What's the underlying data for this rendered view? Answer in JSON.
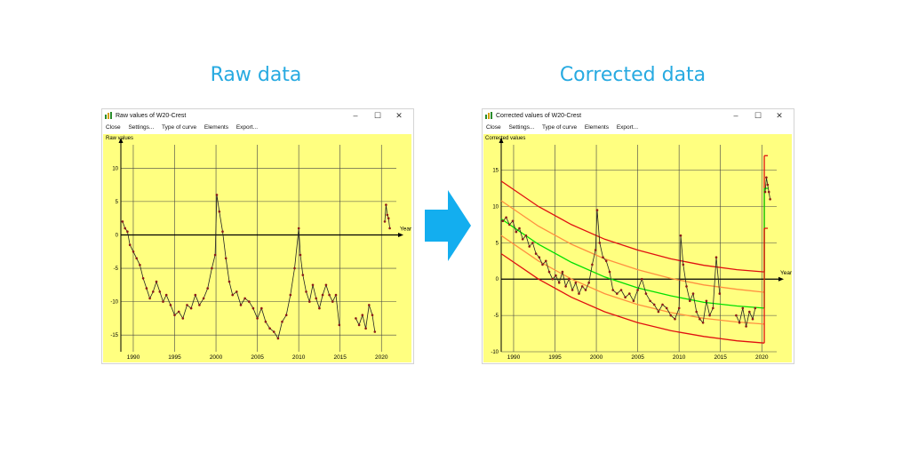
{
  "headings": {
    "raw": "Raw data",
    "corrected": "Corrected data"
  },
  "colors": {
    "heading": "#27aae1",
    "plot_bg": "#ffff80",
    "arrow": "#13aeef",
    "data": "#8b1a1a",
    "trend": "#00e000",
    "inner_band": "#ff9040",
    "outer_band": "#e01010"
  },
  "icons": [
    "app-icon",
    "minimize-icon",
    "maximize-icon",
    "close-icon",
    "right-arrow-icon"
  ],
  "windows": {
    "raw": {
      "title": "Raw values of W20-Crest",
      "menu": [
        "Close",
        "Settings...",
        "Type of curve",
        "Elements",
        "Export..."
      ],
      "ylabel": "Raw values",
      "controls": [
        "–",
        "☐",
        "✕"
      ]
    },
    "corrected": {
      "title": "Corrected values of W20-Crest",
      "menu": [
        "Close",
        "Settings...",
        "Type of curve",
        "Elements",
        "Export..."
      ],
      "ylabel": "Corrected values",
      "controls": [
        "–",
        "☐",
        "✕"
      ]
    }
  },
  "chart_data": [
    {
      "type": "line",
      "ylabel": "Raw values",
      "xlabel": "Years",
      "xlim": [
        1988.5,
        2021.8
      ],
      "ylim": [
        -17.5,
        13.5
      ],
      "xticks": [
        1990,
        1995,
        2000,
        2005,
        2010,
        2015,
        2020
      ],
      "yticks": [
        10,
        5,
        0,
        -5,
        -10,
        -15
      ],
      "grid": true,
      "segments": [
        {
          "x": [
            1988.7,
            1989.0,
            1989.3,
            1989.6,
            1990.0,
            1990.4,
            1990.8,
            1991.2,
            1991.6,
            1992.0,
            1992.4,
            1992.8,
            1993.2,
            1993.6,
            1994.0,
            1994.5,
            1995.0,
            1995.5,
            1996.0,
            1996.5,
            1997.0,
            1997.5,
            1998.0,
            1998.5,
            1999.0,
            1999.5,
            1999.9,
            2000.1,
            2000.4,
            2000.8,
            2001.2,
            2001.6,
            2002.0,
            2002.5,
            2003.0,
            2003.5,
            2004.0,
            2004.5,
            2005.0,
            2005.5,
            2006.0,
            2006.5,
            2007.0,
            2007.5,
            2008.0,
            2008.5,
            2009.0,
            2009.5,
            2010.0,
            2010.2,
            2010.5,
            2010.9,
            2011.3,
            2011.7,
            2012.1,
            2012.5,
            2012.9,
            2013.3,
            2013.7,
            2014.1,
            2014.5,
            2014.9
          ],
          "y": [
            2.0,
            1.0,
            0.5,
            -1.5,
            -2.5,
            -3.5,
            -4.5,
            -6.5,
            -8.0,
            -9.5,
            -8.5,
            -7.0,
            -8.5,
            -10.0,
            -9.0,
            -10.5,
            -12.0,
            -11.5,
            -12.5,
            -10.5,
            -11.0,
            -9.0,
            -10.5,
            -9.5,
            -8.0,
            -5.0,
            -3.0,
            6.0,
            3.5,
            0.5,
            -3.5,
            -7.0,
            -9.0,
            -8.5,
            -10.5,
            -9.5,
            -10.0,
            -11.0,
            -12.5,
            -11.0,
            -13.0,
            -14.0,
            -14.5,
            -15.5,
            -13.0,
            -12.0,
            -9.0,
            -5.0,
            1.0,
            -3.0,
            -6.0,
            -8.5,
            -10.0,
            -7.5,
            -9.5,
            -11.0,
            -9.0,
            -7.5,
            -9.0,
            -10.0,
            -9.0,
            -13.5
          ]
        },
        {
          "x": [
            2016.9,
            2017.3,
            2017.7,
            2018.1,
            2018.5,
            2018.9,
            2019.2
          ],
          "y": [
            -12.5,
            -13.5,
            -12.0,
            -14.0,
            -10.5,
            -12.0,
            -14.5
          ]
        },
        {
          "x": [
            2020.4,
            2020.55,
            2020.7,
            2020.85,
            2021.0
          ],
          "y": [
            2.0,
            4.5,
            3.0,
            2.5,
            1.0
          ]
        }
      ]
    },
    {
      "type": "line",
      "ylabel": "Corrected values",
      "xlabel": "Years",
      "xlim": [
        1988.5,
        2021.8
      ],
      "ylim": [
        -10,
        18.5
      ],
      "xticks": [
        1990,
        1995,
        2000,
        2005,
        2010,
        2015,
        2020
      ],
      "yticks": [
        15,
        10,
        5,
        0,
        -5,
        -10
      ],
      "grid": true,
      "segments": [
        {
          "x": [
            1988.7,
            1989.1,
            1989.5,
            1989.9,
            1990.3,
            1990.7,
            1991.1,
            1991.5,
            1991.9,
            1992.3,
            1992.7,
            1993.1,
            1993.5,
            1993.9,
            1994.3,
            1994.7,
            1995.1,
            1995.5,
            1995.9,
            1996.3,
            1996.7,
            1997.1,
            1997.5,
            1997.9,
            1998.3,
            1998.7,
            1999.1,
            1999.5,
            1999.9,
            2000.1,
            2000.4,
            2000.8,
            2001.2,
            2001.6,
            2002.0,
            2002.5,
            2003.0,
            2003.5,
            2004.0,
            2004.5,
            2005.0,
            2005.5,
            2006.0,
            2006.5,
            2007.0,
            2007.5,
            2008.0,
            2008.5,
            2009.0,
            2009.5,
            2010.0,
            2010.2,
            2010.5,
            2010.9,
            2011.3,
            2011.7,
            2012.1,
            2012.5,
            2012.9,
            2013.3,
            2013.7,
            2014.1,
            2014.5,
            2014.9
          ],
          "y": [
            8.0,
            8.5,
            7.5,
            8.0,
            6.5,
            7.0,
            5.5,
            6.0,
            4.5,
            5.0,
            3.5,
            3.0,
            2.0,
            2.5,
            1.0,
            0.0,
            0.5,
            -0.5,
            1.0,
            -1.0,
            0.0,
            -1.5,
            -0.5,
            -2.0,
            -1.0,
            -1.5,
            -0.5,
            2.0,
            4.0,
            9.5,
            5.0,
            3.0,
            2.5,
            1.0,
            -1.5,
            -2.0,
            -1.5,
            -2.5,
            -2.0,
            -3.0,
            -1.5,
            0.0,
            -2.0,
            -3.0,
            -3.5,
            -4.5,
            -3.5,
            -4.0,
            -5.0,
            -5.5,
            -4.0,
            6.0,
            2.0,
            -1.0,
            -3.0,
            -2.0,
            -4.5,
            -5.5,
            -6.0,
            -3.0,
            -5.0,
            -4.0,
            3.0,
            -2.0
          ]
        },
        {
          "x": [
            2016.9,
            2017.3,
            2017.7,
            2018.1,
            2018.5,
            2018.9,
            2019.2
          ],
          "y": [
            -5.0,
            -6.0,
            -4.0,
            -6.5,
            -4.5,
            -5.5,
            -4.0
          ]
        },
        {
          "x": [
            2020.4,
            2020.55,
            2020.7,
            2020.85,
            2021.0
          ],
          "y": [
            12.0,
            14.0,
            13.0,
            12.0,
            11.0
          ]
        }
      ],
      "bands": [
        {
          "name": "upper-outer",
          "color": "#e01010",
          "x": [
            1988.5,
            1993,
            1997,
            2001,
            2005,
            2009,
            2013,
            2017,
            2020.3
          ],
          "y": [
            13.5,
            10.0,
            7.5,
            5.5,
            4.0,
            2.8,
            1.9,
            1.3,
            1.0
          ]
        },
        {
          "name": "upper-inner",
          "color": "#ff9040",
          "x": [
            1988.5,
            1993,
            1997,
            2001,
            2005,
            2009,
            2013,
            2017,
            2020.3
          ],
          "y": [
            10.8,
            7.3,
            4.8,
            2.8,
            1.3,
            0.1,
            -0.8,
            -1.4,
            -1.8
          ]
        },
        {
          "name": "trend",
          "color": "#00e000",
          "x": [
            1988.5,
            1993,
            1997,
            2001,
            2005,
            2009,
            2013,
            2017,
            2020.3
          ],
          "y": [
            8.3,
            4.8,
            2.3,
            0.3,
            -1.2,
            -2.3,
            -3.2,
            -3.7,
            -4.0
          ]
        },
        {
          "name": "lower-inner",
          "color": "#ff9040",
          "x": [
            1988.5,
            1993,
            1997,
            2001,
            2005,
            2009,
            2013,
            2017,
            2020.3
          ],
          "y": [
            6.0,
            2.5,
            0.0,
            -2.0,
            -3.5,
            -4.6,
            -5.4,
            -5.9,
            -6.2
          ]
        },
        {
          "name": "lower-outer",
          "color": "#e01010",
          "x": [
            1988.5,
            1993,
            1997,
            2001,
            2005,
            2009,
            2013,
            2017,
            2020.3
          ],
          "y": [
            3.5,
            0.0,
            -2.5,
            -4.5,
            -6.0,
            -7.1,
            -7.9,
            -8.5,
            -8.8
          ]
        }
      ],
      "steps": [
        {
          "color": "#e01010",
          "x": 2020.3,
          "from": 1.0,
          "to": 17.0
        },
        {
          "color": "#00e000",
          "x": 2020.3,
          "from": -4.0,
          "to": 12.5
        },
        {
          "color": "#e01010",
          "x": 2020.3,
          "from": -8.8,
          "to": 7.0
        }
      ]
    }
  ]
}
